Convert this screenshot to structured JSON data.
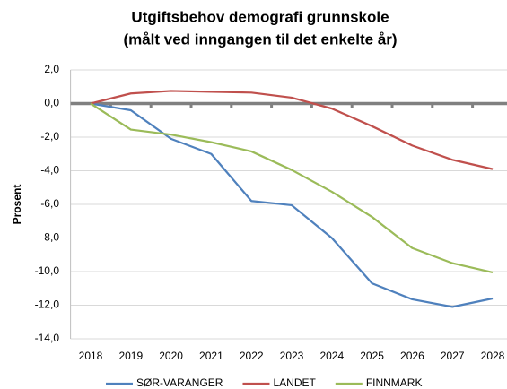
{
  "chart_data": {
    "type": "line",
    "title": [
      "Utgiftsbehov demografi grunnskole",
      "(målt ved inngangen til det enkelte år)"
    ],
    "y_label": "Prosent",
    "categories": [
      "2018",
      "2019",
      "2020",
      "2021",
      "2022",
      "2023",
      "2024",
      "2025",
      "2026",
      "2027",
      "2028"
    ],
    "series": [
      {
        "name": "SØR-VARANGER",
        "color": "#4f81bd",
        "values": [
          0,
          -0.4,
          -2.1,
          -3.0,
          -5.8,
          -6.05,
          -8.0,
          -10.7,
          -11.65,
          -12.1,
          -11.6
        ]
      },
      {
        "name": "LANDET",
        "color": "#c0504d",
        "values": [
          0,
          0.6,
          0.75,
          0.7,
          0.65,
          0.35,
          -0.3,
          -1.35,
          -2.5,
          -3.35,
          -3.9
        ]
      },
      {
        "name": "FINNMARK",
        "color": "#9bbb59",
        "values": [
          0,
          -1.55,
          -1.85,
          -2.3,
          -2.85,
          -3.95,
          -5.25,
          -6.75,
          -8.6,
          -9.5,
          -10.05
        ]
      }
    ],
    "ylim": [
      -14,
      2
    ],
    "yticks": [
      {
        "value": -14,
        "label": "-14,0"
      },
      {
        "value": -12,
        "label": "-12,0"
      },
      {
        "value": -10,
        "label": "-10,0"
      },
      {
        "value": -8,
        "label": "-8,0"
      },
      {
        "value": -6,
        "label": "-6,0"
      },
      {
        "value": -4,
        "label": "-4,0"
      },
      {
        "value": -2,
        "label": "-2,0"
      },
      {
        "value": 0,
        "label": "0,0"
      },
      {
        "value": 2,
        "label": "2,0"
      }
    ],
    "grid": true,
    "legend": "bottom"
  }
}
